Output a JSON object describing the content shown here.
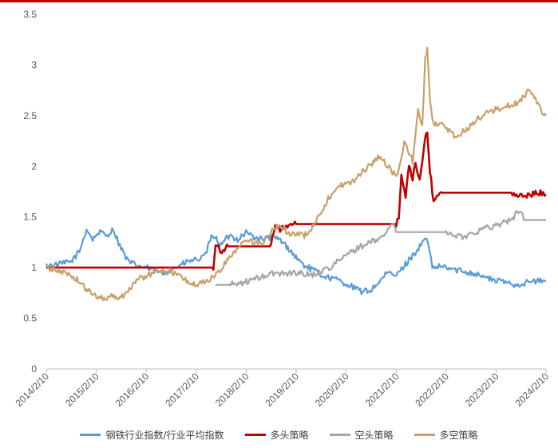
{
  "chart_data": {
    "type": "line",
    "title": "",
    "xlabel": "",
    "ylabel": "",
    "ylim": [
      0,
      3.5
    ],
    "yticks": [
      "0",
      "0.5",
      "1",
      "1.5",
      "2",
      "2.5",
      "3",
      "3.5"
    ],
    "xlim": [
      "2014-02-10",
      "2024-02-10"
    ],
    "xticks": [
      "2014/2/10",
      "2015/2/10",
      "2016/2/10",
      "2017/2/10",
      "2018/2/10",
      "2019/2/10",
      "2020/2/10",
      "2021/2/10",
      "2022/2/10",
      "2023/2/10",
      "2024/2/10"
    ],
    "grid": false,
    "legend": "bottom",
    "series": [
      {
        "name": "钢铁行业指数/行业平均指数",
        "color": "#5b9bd5",
        "x": [
          "2014-02-10",
          "2014-05-10",
          "2014-08-10",
          "2014-10-10",
          "2014-12-01",
          "2015-01-15",
          "2015-03-01",
          "2015-05-01",
          "2015-06-15",
          "2015-08-01",
          "2015-10-01",
          "2015-12-01",
          "2016-02-10",
          "2016-04-10",
          "2016-06-10",
          "2016-08-10",
          "2016-10-10",
          "2016-12-10",
          "2017-02-10",
          "2017-04-10",
          "2017-06-10",
          "2017-08-10",
          "2017-10-10",
          "2017-12-10",
          "2018-02-10",
          "2018-04-10",
          "2018-06-10",
          "2018-08-10",
          "2018-10-10",
          "2018-12-10",
          "2019-02-10",
          "2019-04-10",
          "2019-06-10",
          "2019-08-10",
          "2019-10-10",
          "2019-12-10",
          "2020-02-10",
          "2020-04-10",
          "2020-06-10",
          "2020-08-10",
          "2020-10-10",
          "2020-12-10",
          "2021-02-10",
          "2021-04-10",
          "2021-06-10",
          "2021-08-10",
          "2021-09-20",
          "2021-11-01",
          "2022-01-10",
          "2022-04-10",
          "2022-07-10",
          "2022-10-10",
          "2023-01-10",
          "2023-04-10",
          "2023-07-10",
          "2023-10-10",
          "2024-01-10",
          "2024-02-10"
        ],
        "values": [
          1.02,
          1.03,
          1.06,
          1.16,
          1.38,
          1.28,
          1.35,
          1.32,
          1.38,
          1.22,
          1.06,
          1.02,
          1.0,
          0.97,
          0.94,
          0.98,
          1.02,
          1.06,
          1.08,
          1.1,
          1.33,
          1.22,
          1.32,
          1.28,
          1.35,
          1.3,
          1.28,
          1.3,
          1.28,
          1.2,
          1.1,
          1.02,
          0.98,
          0.93,
          0.9,
          0.88,
          0.84,
          0.8,
          0.76,
          0.78,
          0.86,
          0.95,
          0.92,
          1.02,
          1.12,
          1.22,
          1.3,
          1.0,
          1.01,
          0.98,
          0.96,
          0.93,
          0.88,
          0.86,
          0.83,
          0.86,
          0.87,
          0.87
        ]
      },
      {
        "name": "多头策略",
        "color": "#c00000",
        "x": [
          "2014-02-10",
          "2017-06-15",
          "2017-07-01",
          "2017-08-15",
          "2017-10-01",
          "2018-02-10",
          "2018-08-10",
          "2018-09-10",
          "2018-10-15",
          "2019-02-10",
          "2020-02-10",
          "2021-02-10",
          "2021-03-01",
          "2021-03-20",
          "2021-04-20",
          "2021-05-15",
          "2021-06-10",
          "2021-07-01",
          "2021-08-01",
          "2021-09-01",
          "2021-09-25",
          "2021-10-15",
          "2021-11-10",
          "2022-01-10",
          "2023-06-10",
          "2023-07-10",
          "2023-10-10",
          "2024-01-10",
          "2024-02-10"
        ],
        "values": [
          1.0,
          1.0,
          1.24,
          1.16,
          1.21,
          1.21,
          1.21,
          1.43,
          1.38,
          1.43,
          1.43,
          1.43,
          1.5,
          1.9,
          1.7,
          2.0,
          1.85,
          2.05,
          1.85,
          2.2,
          2.34,
          1.95,
          1.66,
          1.74,
          1.74,
          1.7,
          1.72,
          1.74,
          1.72
        ]
      },
      {
        "name": "空头策略",
        "color": "#a5a5a5",
        "x": [
          "2017-07-01",
          "2017-10-01",
          "2018-02-10",
          "2018-06-10",
          "2018-08-10",
          "2019-02-10",
          "2019-06-10",
          "2019-10-10",
          "2020-02-10",
          "2020-05-10",
          "2020-08-10",
          "2020-11-01",
          "2021-01-10",
          "2021-02-10",
          "2021-06-10",
          "2022-02-10",
          "2022-06-10",
          "2022-10-10",
          "2023-02-10",
          "2023-06-10",
          "2023-08-01",
          "2023-09-01",
          "2023-10-10",
          "2024-02-10"
        ],
        "values": [
          0.83,
          0.83,
          0.86,
          0.91,
          0.94,
          0.95,
          0.93,
          1.0,
          1.12,
          1.2,
          1.25,
          1.3,
          1.44,
          1.35,
          1.35,
          1.35,
          1.3,
          1.37,
          1.42,
          1.48,
          1.58,
          1.47,
          1.47,
          1.47
        ]
      },
      {
        "name": "多空策略",
        "color": "#c9a06a",
        "x": [
          "2014-02-10",
          "2014-05-10",
          "2014-08-10",
          "2014-10-10",
          "2014-12-01",
          "2015-02-10",
          "2015-04-10",
          "2015-06-10",
          "2015-08-10",
          "2015-10-10",
          "2015-12-10",
          "2016-02-10",
          "2016-04-10",
          "2016-06-10",
          "2016-08-10",
          "2016-10-10",
          "2016-12-10",
          "2017-02-10",
          "2017-04-10",
          "2017-06-10",
          "2017-08-10",
          "2017-10-10",
          "2017-12-10",
          "2018-02-10",
          "2018-04-10",
          "2018-06-10",
          "2018-08-10",
          "2018-10-10",
          "2018-12-10",
          "2019-02-10",
          "2019-04-10",
          "2019-06-10",
          "2019-08-10",
          "2019-10-10",
          "2019-12-10",
          "2020-02-10",
          "2020-04-10",
          "2020-06-10",
          "2020-08-10",
          "2020-10-10",
          "2020-12-10",
          "2021-02-10",
          "2021-03-10",
          "2021-04-10",
          "2021-06-10",
          "2021-07-20",
          "2021-08-20",
          "2021-09-10",
          "2021-09-25",
          "2021-10-15",
          "2021-11-10",
          "2022-01-10",
          "2022-04-10",
          "2022-07-10",
          "2022-10-10",
          "2023-01-10",
          "2023-04-10",
          "2023-07-10",
          "2023-09-10",
          "2023-10-10",
          "2024-01-10",
          "2024-02-10"
        ],
        "values": [
          1.0,
          0.97,
          0.93,
          0.86,
          0.78,
          0.72,
          0.7,
          0.72,
          0.7,
          0.8,
          0.88,
          0.92,
          0.95,
          0.98,
          0.96,
          0.92,
          0.86,
          0.83,
          0.86,
          0.9,
          0.98,
          1.1,
          1.2,
          1.28,
          1.25,
          1.22,
          1.35,
          1.42,
          1.35,
          1.32,
          1.32,
          1.4,
          1.55,
          1.7,
          1.8,
          1.83,
          1.85,
          1.95,
          2.02,
          2.1,
          2.0,
          1.9,
          2.0,
          2.25,
          2.05,
          2.55,
          2.4,
          3.05,
          3.19,
          2.65,
          2.4,
          2.42,
          2.3,
          2.36,
          2.48,
          2.55,
          2.58,
          2.62,
          2.7,
          2.78,
          2.55,
          2.5
        ]
      }
    ]
  }
}
